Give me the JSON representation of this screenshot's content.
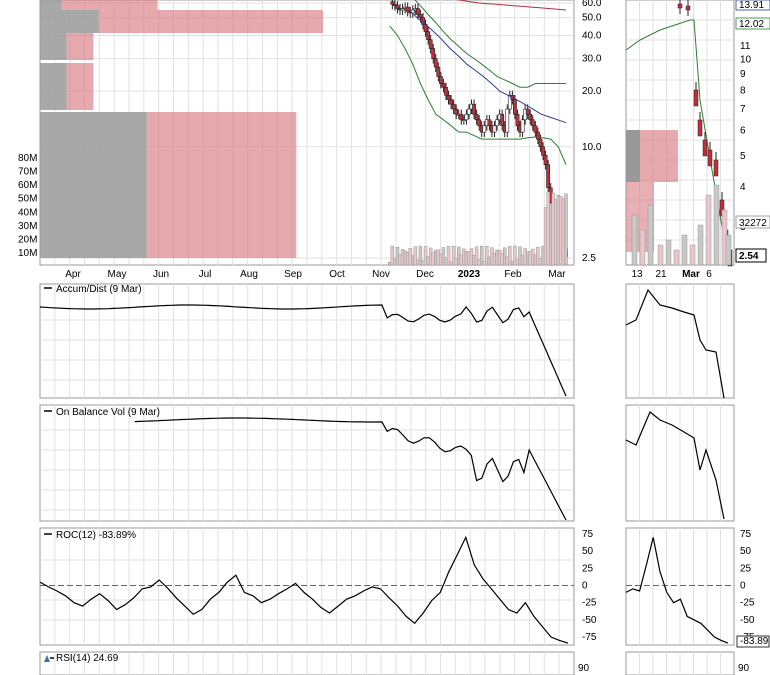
{
  "chart_data": {
    "type": "stock-chart",
    "price": {
      "yaxis_ticks": [
        "60.0",
        "50.0",
        "40.0",
        "30.0",
        "20.0",
        "10.0",
        "2.5"
      ],
      "yaxis_values": [
        60,
        50,
        40,
        30,
        20,
        10,
        2.5
      ],
      "scale": "log",
      "volume_ticks": [
        "80M",
        "70M",
        "60M",
        "50M",
        "40M",
        "30M",
        "20M",
        "10M"
      ],
      "volume_values": [
        80,
        70,
        60,
        50,
        40,
        30,
        20,
        10
      ],
      "xaxis_ticks": [
        "Apr",
        "May",
        "Jun",
        "Jul",
        "Aug",
        "Sep",
        "Oct",
        "Nov",
        "Dec",
        "2023",
        "Feb",
        "Mar"
      ],
      "closes": [
        61,
        59,
        58,
        56,
        55,
        56,
        57,
        54,
        53,
        55,
        56,
        52,
        50,
        46,
        42,
        38,
        34,
        30,
        27,
        24,
        22,
        21,
        19,
        18,
        17,
        16,
        15,
        15,
        14,
        14,
        15,
        16,
        17,
        15,
        14,
        13,
        12,
        13,
        14,
        13,
        12,
        13,
        14,
        15,
        13,
        12,
        16,
        19,
        18,
        15,
        13,
        12,
        14,
        16,
        15,
        14,
        13,
        12,
        11,
        10,
        9,
        8,
        6,
        5,
        4,
        3.5,
        3.2,
        3.0,
        2.8,
        2.54
      ],
      "close_start": "2022-11-07",
      "bollinger_upper": [
        80,
        75,
        70,
        64,
        58,
        52,
        47,
        42,
        38,
        35,
        32,
        30,
        28,
        26,
        24,
        23,
        22,
        21,
        21,
        22,
        22,
        22,
        22,
        22
      ],
      "bollinger_lower": [
        45,
        40,
        34,
        28,
        22,
        18,
        15,
        14,
        13,
        12,
        12,
        11.5,
        11,
        11,
        11,
        11,
        11,
        11,
        11.2,
        11.3,
        11.2,
        11,
        10,
        8
      ],
      "ma_blue": [
        55,
        50,
        46,
        42,
        38,
        34,
        31,
        28,
        26,
        24,
        22,
        20,
        19,
        18,
        17,
        16,
        15,
        14.5,
        14,
        13.5
      ],
      "ma_red": [
        63,
        62,
        61,
        60,
        59.5,
        59,
        58.5,
        58,
        57.5,
        57,
        56.5,
        56,
        55.5,
        55
      ]
    },
    "volume_by_price": [
      {
        "price_band": "58-68",
        "up": 0.18,
        "down": 0.04
      },
      {
        "price_band": "48-58",
        "up": 0.05,
        "down": 0.05
      },
      {
        "price_band": "34-48",
        "up": 0.05,
        "down": 0.05
      },
      {
        "price_band": "19-30",
        "up": 0.28,
        "down": 0.2
      },
      {
        "price_band": "2.5-16",
        "up": 0.42,
        "down": 0.11
      }
    ],
    "inset": {
      "xaxis_ticks": [
        "13",
        "21",
        "Mar",
        "6"
      ],
      "yaxis_ticks": [
        "13",
        "11",
        "10",
        "9",
        "8",
        "7",
        "6",
        "5",
        "4",
        "3"
      ],
      "yaxis_values": [
        13,
        11,
        10,
        9,
        8,
        7,
        6,
        5,
        4,
        3
      ],
      "price_labels": {
        "top": "13.91",
        "mid": "12.02",
        "volume": "32272",
        "last": "2.54"
      }
    },
    "accum_dist": {
      "label": "Accum/Dist (9 Mar)"
    },
    "obv": {
      "label": "On Balance Vol (9 Mar)"
    },
    "roc": {
      "label": "ROC(12) -83.89%",
      "yaxis_ticks": [
        "75",
        "50",
        "25",
        "0",
        "-25",
        "-50",
        "-75"
      ],
      "yaxis_values": [
        75,
        50,
        25,
        0,
        -25,
        -50,
        -75
      ],
      "last_label": "-83.89",
      "values": [
        5,
        -2,
        -8,
        -15,
        -25,
        -30,
        -20,
        -12,
        -22,
        -35,
        -28,
        -18,
        -5,
        -2,
        8,
        -4,
        -18,
        -30,
        -42,
        -35,
        -20,
        -10,
        5,
        15,
        -10,
        -15,
        -25,
        -20,
        -12,
        -5,
        3,
        -10,
        -20,
        -32,
        -40,
        -30,
        -20,
        -15,
        -8,
        -2,
        -5,
        -18,
        -30,
        -45,
        -55,
        -40,
        -22,
        -10,
        20,
        45,
        70,
        30,
        10,
        -5,
        -20,
        -35,
        -40,
        -25,
        -45,
        -60,
        -75,
        -80,
        -83.89
      ],
      "inset_values": [
        -10,
        -5,
        -8,
        30,
        70,
        20,
        -10,
        -25,
        -20,
        -45,
        -50,
        -55,
        -65,
        -75,
        -80,
        -83.89
      ]
    },
    "rsi": {
      "label": "RSI(14) 24.69",
      "yaxis_ticks": [
        "90"
      ]
    }
  }
}
